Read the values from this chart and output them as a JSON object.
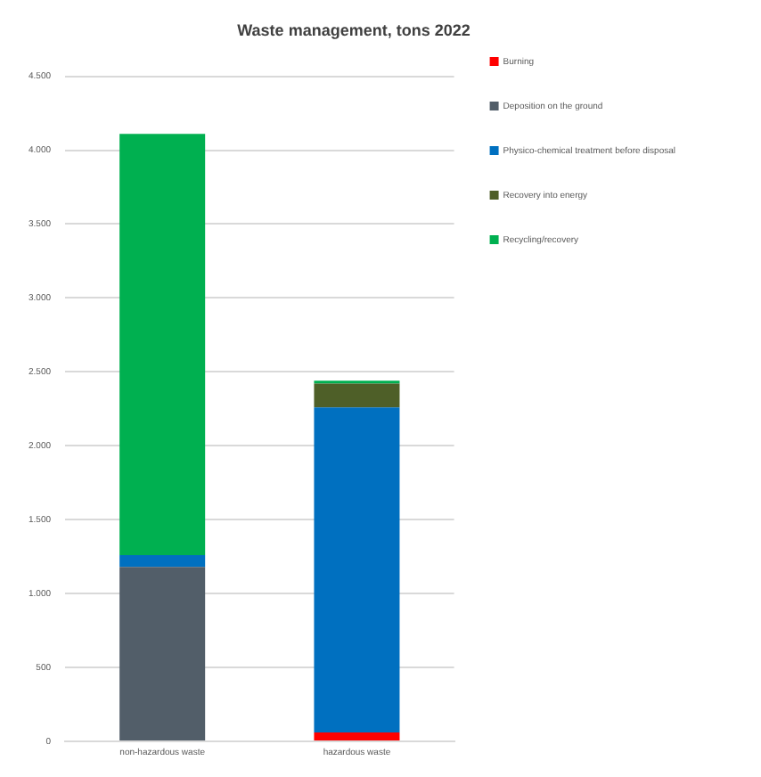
{
  "chart_data": {
    "type": "bar",
    "title": "Waste management, tons 2022",
    "categories": [
      "non-hazardous waste",
      "hazardous waste"
    ],
    "stacked": true,
    "series": [
      {
        "name": "Burning",
        "color": "#ff0000",
        "values": [
          0,
          60
        ]
      },
      {
        "name": "Deposition on the ground",
        "color": "#525e69",
        "values": [
          1180,
          0
        ]
      },
      {
        "name": "Physico-chemical treatment before disposal",
        "color": "#0070c0",
        "values": [
          80,
          2200
        ]
      },
      {
        "name": "Recovery into energy",
        "color": "#4e5f28",
        "values": [
          0,
          160
        ]
      },
      {
        "name": "Recycling/recovery",
        "color": "#00b050",
        "values": [
          2850,
          20
        ]
      }
    ],
    "ylim": [
      0,
      4500
    ],
    "yticks": [
      {
        "value": 0,
        "label": "0"
      },
      {
        "value": 500,
        "label": "500"
      },
      {
        "value": 1000,
        "label": "1.000"
      },
      {
        "value": 1500,
        "label": "1.500"
      },
      {
        "value": 2000,
        "label": "2.000"
      },
      {
        "value": 2500,
        "label": "2.500"
      },
      {
        "value": 3000,
        "label": "3.000"
      },
      {
        "value": 3500,
        "label": "3.500"
      },
      {
        "value": 4000,
        "label": "4.000"
      },
      {
        "value": 4500,
        "label": "4.500"
      }
    ],
    "grid": "y",
    "legend": "right"
  }
}
